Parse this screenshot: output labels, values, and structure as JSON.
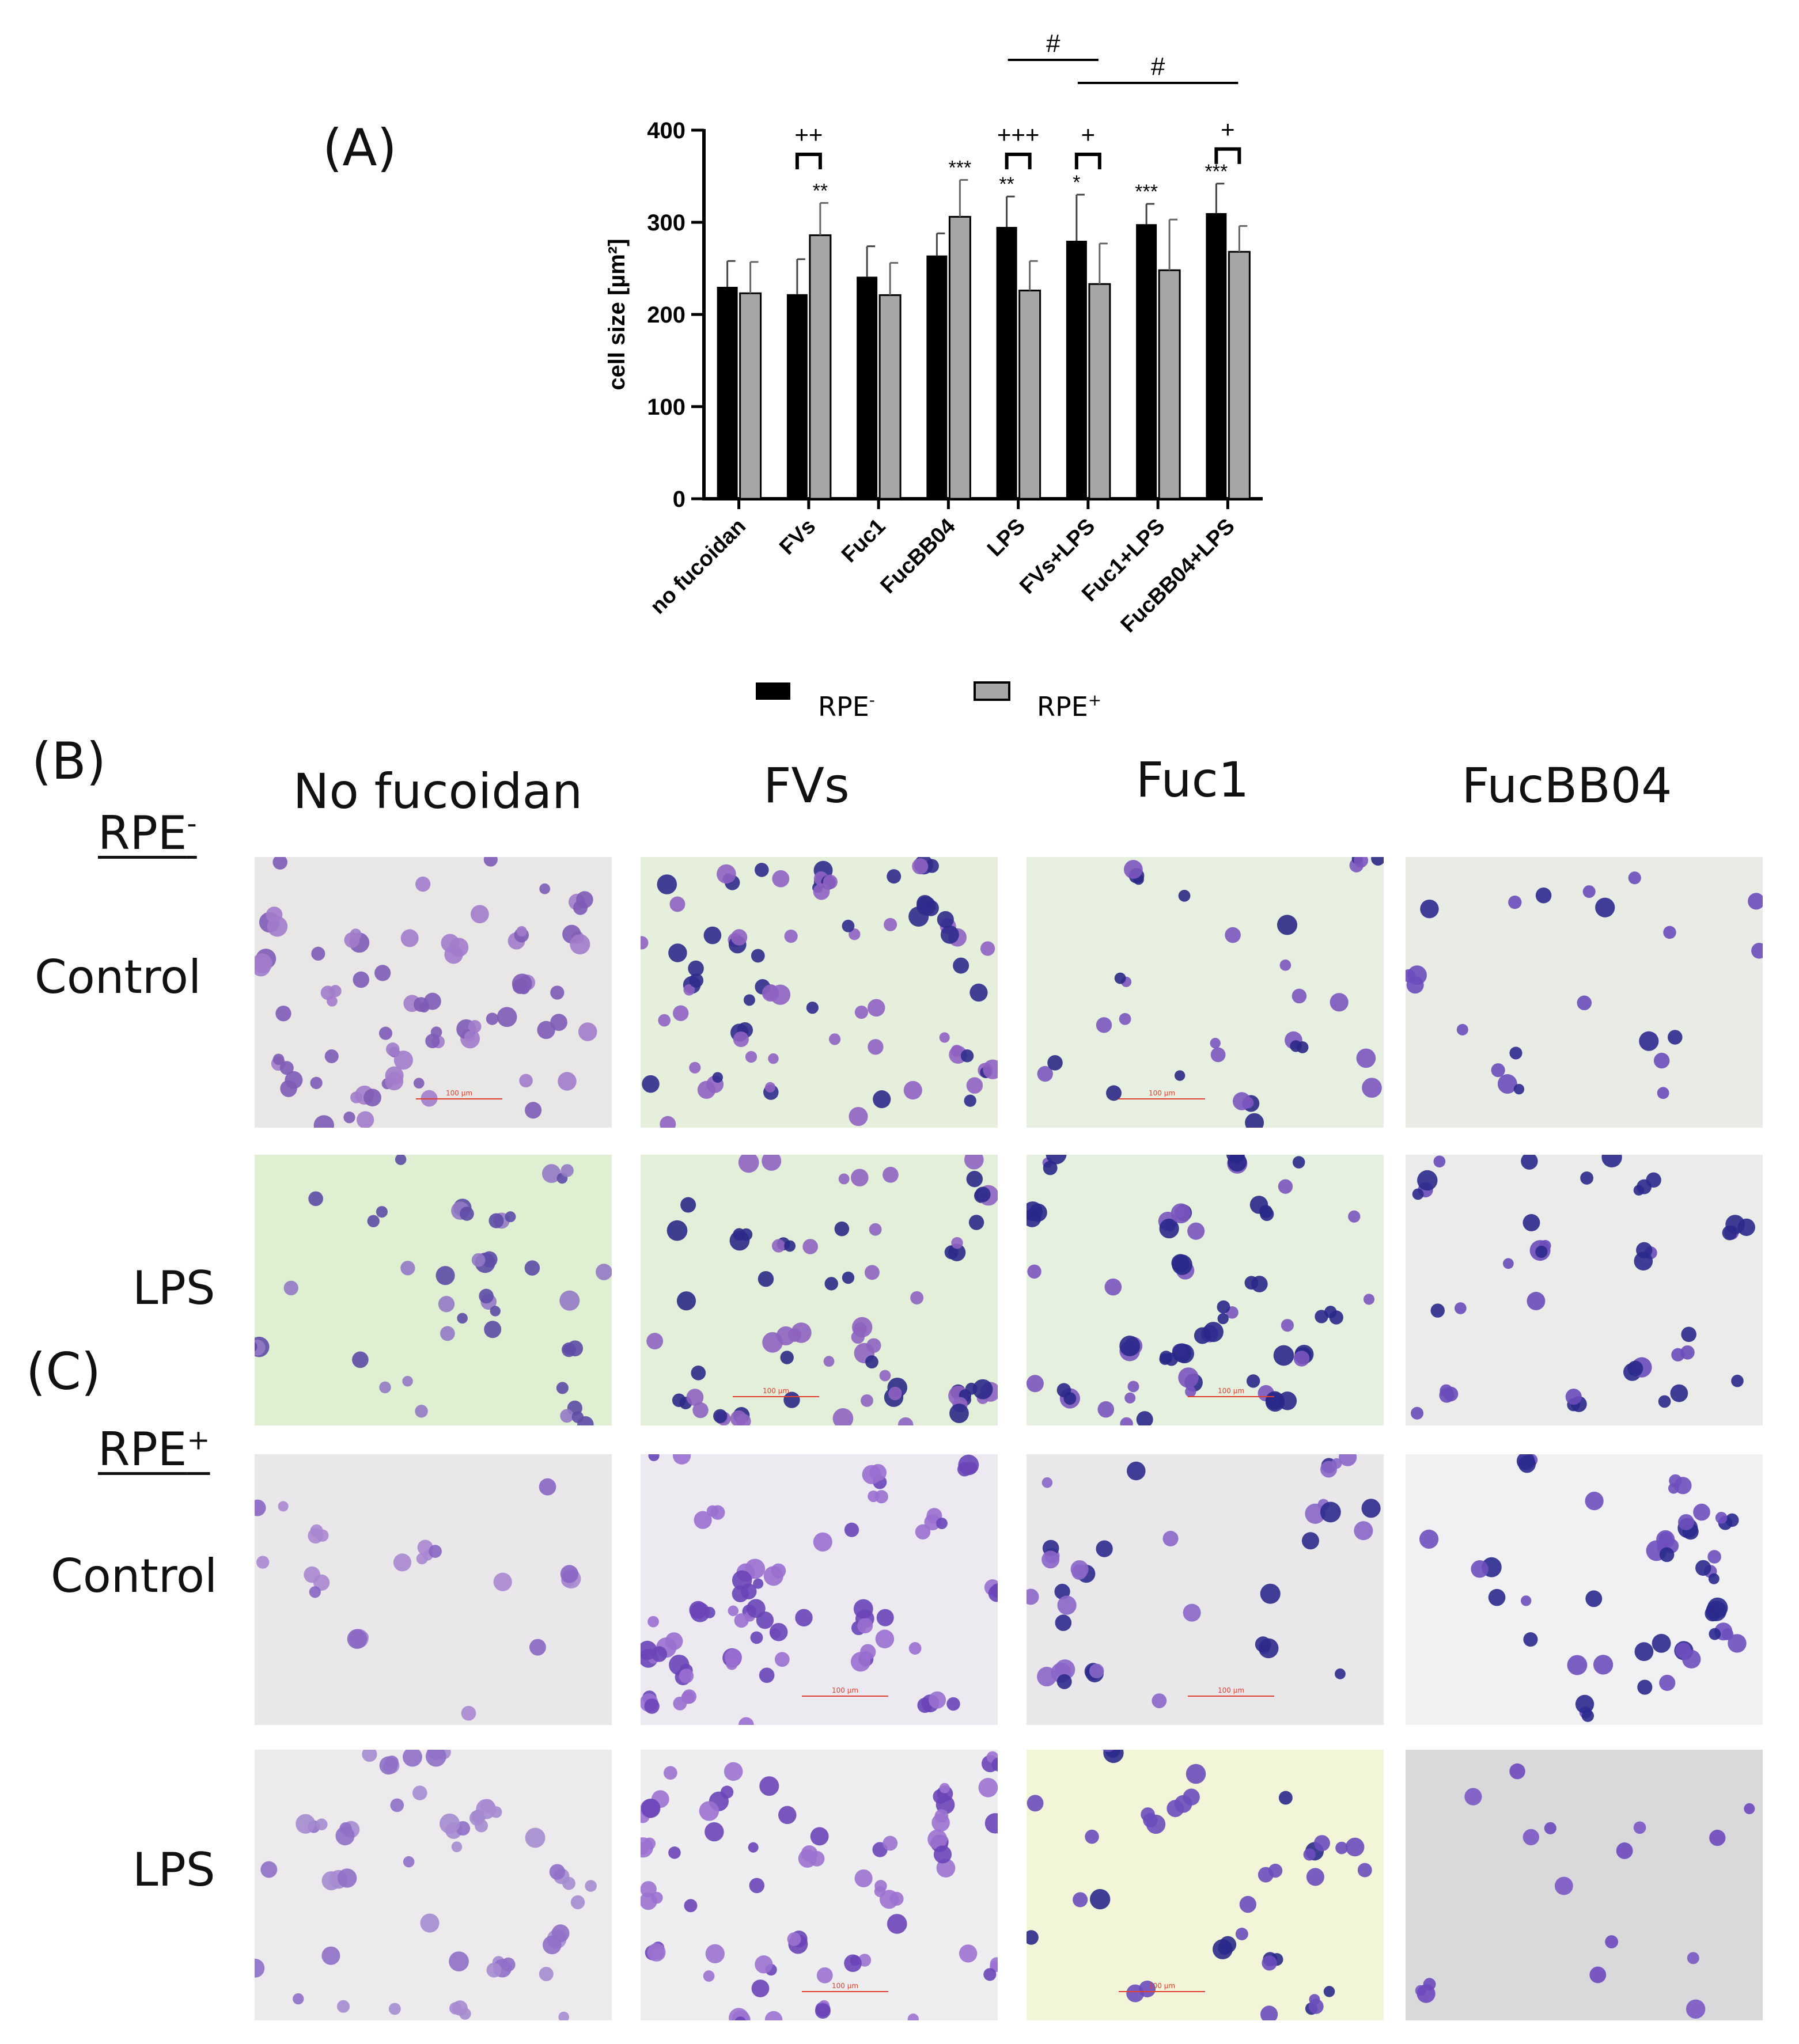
{
  "panel_labels": {
    "a": "(A)",
    "b": "(B)",
    "c": "(C)"
  },
  "group_labels": {
    "rpe_minus_base": "RPE",
    "rpe_minus_sup": "-",
    "rpe_plus_base": "RPE",
    "rpe_plus_sup": "+"
  },
  "row_labels": {
    "control": "Control",
    "lps": "LPS"
  },
  "column_titles": [
    "No fucoidan",
    "FVs",
    "Fuc1",
    "FucBB04"
  ],
  "scale_bar_label": "100 µm",
  "chart_data": {
    "type": "bar",
    "ylabel": "cell size [µm²]",
    "ylim": [
      0,
      400
    ],
    "yticks": [
      0,
      100,
      200,
      300,
      400
    ],
    "categories": [
      "no fucoidan",
      "FVs",
      "Fuc1",
      "FucBB04",
      "LPS",
      "FVs+LPS",
      "Fuc1+LPS",
      "FucBB04+LPS"
    ],
    "series": [
      {
        "name": "RPE-",
        "legend_base": "RPE",
        "legend_sup": "-",
        "color": "#000000",
        "values": [
          230,
          222,
          241,
          264,
          295,
          280,
          298,
          310
        ],
        "errors": [
          28,
          38,
          33,
          24,
          33,
          50,
          22,
          32
        ],
        "stars": [
          "",
          "",
          "",
          "",
          "**",
          "*",
          "***",
          "***"
        ]
      },
      {
        "name": "RPE+",
        "legend_base": "RPE",
        "legend_sup": "+",
        "color": "#a6a6a6",
        "values": [
          223,
          286,
          221,
          306,
          226,
          233,
          248,
          268
        ],
        "errors": [
          34,
          35,
          35,
          40,
          32,
          44,
          55,
          28
        ],
        "stars": [
          "",
          "**",
          "",
          "***",
          "",
          "",
          "",
          ""
        ]
      }
    ],
    "pair_brackets": [
      {
        "category": 1,
        "label": "++"
      },
      {
        "category": 4,
        "label": "+++"
      },
      {
        "category": 5,
        "label": "+"
      },
      {
        "category": 7,
        "label": "+"
      }
    ],
    "hash_brackets": [
      {
        "from": 4,
        "to": 5,
        "label": "#"
      },
      {
        "from": 5,
        "to": 7,
        "label": "#"
      }
    ],
    "legend": "bottom"
  },
  "micrographs": [
    {
      "row": "rpe_minus_control",
      "col": 0,
      "bg": "#e9e7e6",
      "cell": "#a27ccb",
      "dark": "#7e5bb6",
      "n": 48,
      "seed": 11,
      "scale": true
    },
    {
      "row": "rpe_minus_control",
      "col": 1,
      "bg": "#e6eedc",
      "cell": "#8f62c2",
      "dark": "#2f2b8c",
      "n": 55,
      "seed": 23,
      "scale": false
    },
    {
      "row": "rpe_minus_control",
      "col": 2,
      "bg": "#e6efe0",
      "cell": "#7b56bf",
      "dark": "#2a2886",
      "n": 24,
      "seed": 37,
      "scale": true
    },
    {
      "row": "rpe_minus_control",
      "col": 3,
      "bg": "#e8ece4",
      "cell": "#6c4dbb",
      "dark": "#2c2a8e",
      "n": 20,
      "seed": 41,
      "scale": false
    },
    {
      "row": "rpe_minus_lps",
      "col": 0,
      "bg": "#dff0d2",
      "cell": "#9479c4",
      "dark": "#5e4ba6",
      "n": 30,
      "seed": 53,
      "scale": false
    },
    {
      "row": "rpe_minus_lps",
      "col": 1,
      "bg": "#e3efd8",
      "cell": "#8e63c1",
      "dark": "#2b2a8a",
      "n": 45,
      "seed": 61,
      "scale": true
    },
    {
      "row": "rpe_minus_lps",
      "col": 2,
      "bg": "#e6f0de",
      "cell": "#7a55be",
      "dark": "#28288a",
      "n": 36,
      "seed": 71,
      "scale": true
    },
    {
      "row": "rpe_minus_lps",
      "col": 3,
      "bg": "#ebebe9",
      "cell": "#6a4bba",
      "dark": "#2a2a8c",
      "n": 25,
      "seed": 83,
      "scale": false
    },
    {
      "row": "rpe_plus_control",
      "col": 0,
      "bg": "#e9e7ea",
      "cell": "#a887d2",
      "dark": "#8966c4",
      "n": 14,
      "seed": 97,
      "scale": false
    },
    {
      "row": "rpe_plus_control",
      "col": 1,
      "bg": "#eceaf0",
      "cell": "#9a6fd0",
      "dark": "#6a45b8",
      "n": 46,
      "seed": 101,
      "scale": true
    },
    {
      "row": "rpe_plus_control",
      "col": 2,
      "bg": "#e9e7ea",
      "cell": "#8a66c8",
      "dark": "#2c2a8c",
      "n": 24,
      "seed": 113,
      "scale": true
    },
    {
      "row": "rpe_plus_control",
      "col": 3,
      "bg": "#f1f0f2",
      "cell": "#6f4fbe",
      "dark": "#2a2a8e",
      "n": 28,
      "seed": 127,
      "scale": false
    },
    {
      "row": "rpe_plus_lps",
      "col": 0,
      "bg": "#eceaec",
      "cell": "#a68bd0",
      "dark": "#8f6fc8",
      "n": 32,
      "seed": 131,
      "scale": false
    },
    {
      "row": "rpe_plus_lps",
      "col": 1,
      "bg": "#eeedf0",
      "cell": "#9b72d0",
      "dark": "#6a45b8",
      "n": 48,
      "seed": 149,
      "scale": true
    },
    {
      "row": "rpe_plus_lps",
      "col": 2,
      "bg": "#f3f5d8",
      "cell": "#6c4cbd",
      "dark": "#2a2a8c",
      "n": 26,
      "seed": 157,
      "scale": true
    },
    {
      "row": "rpe_plus_lps",
      "col": 3,
      "bg": "#d9d9dc",
      "cell": "#7b56c4",
      "dark": "#6d48be",
      "n": 14,
      "seed": 163,
      "scale": false
    }
  ]
}
